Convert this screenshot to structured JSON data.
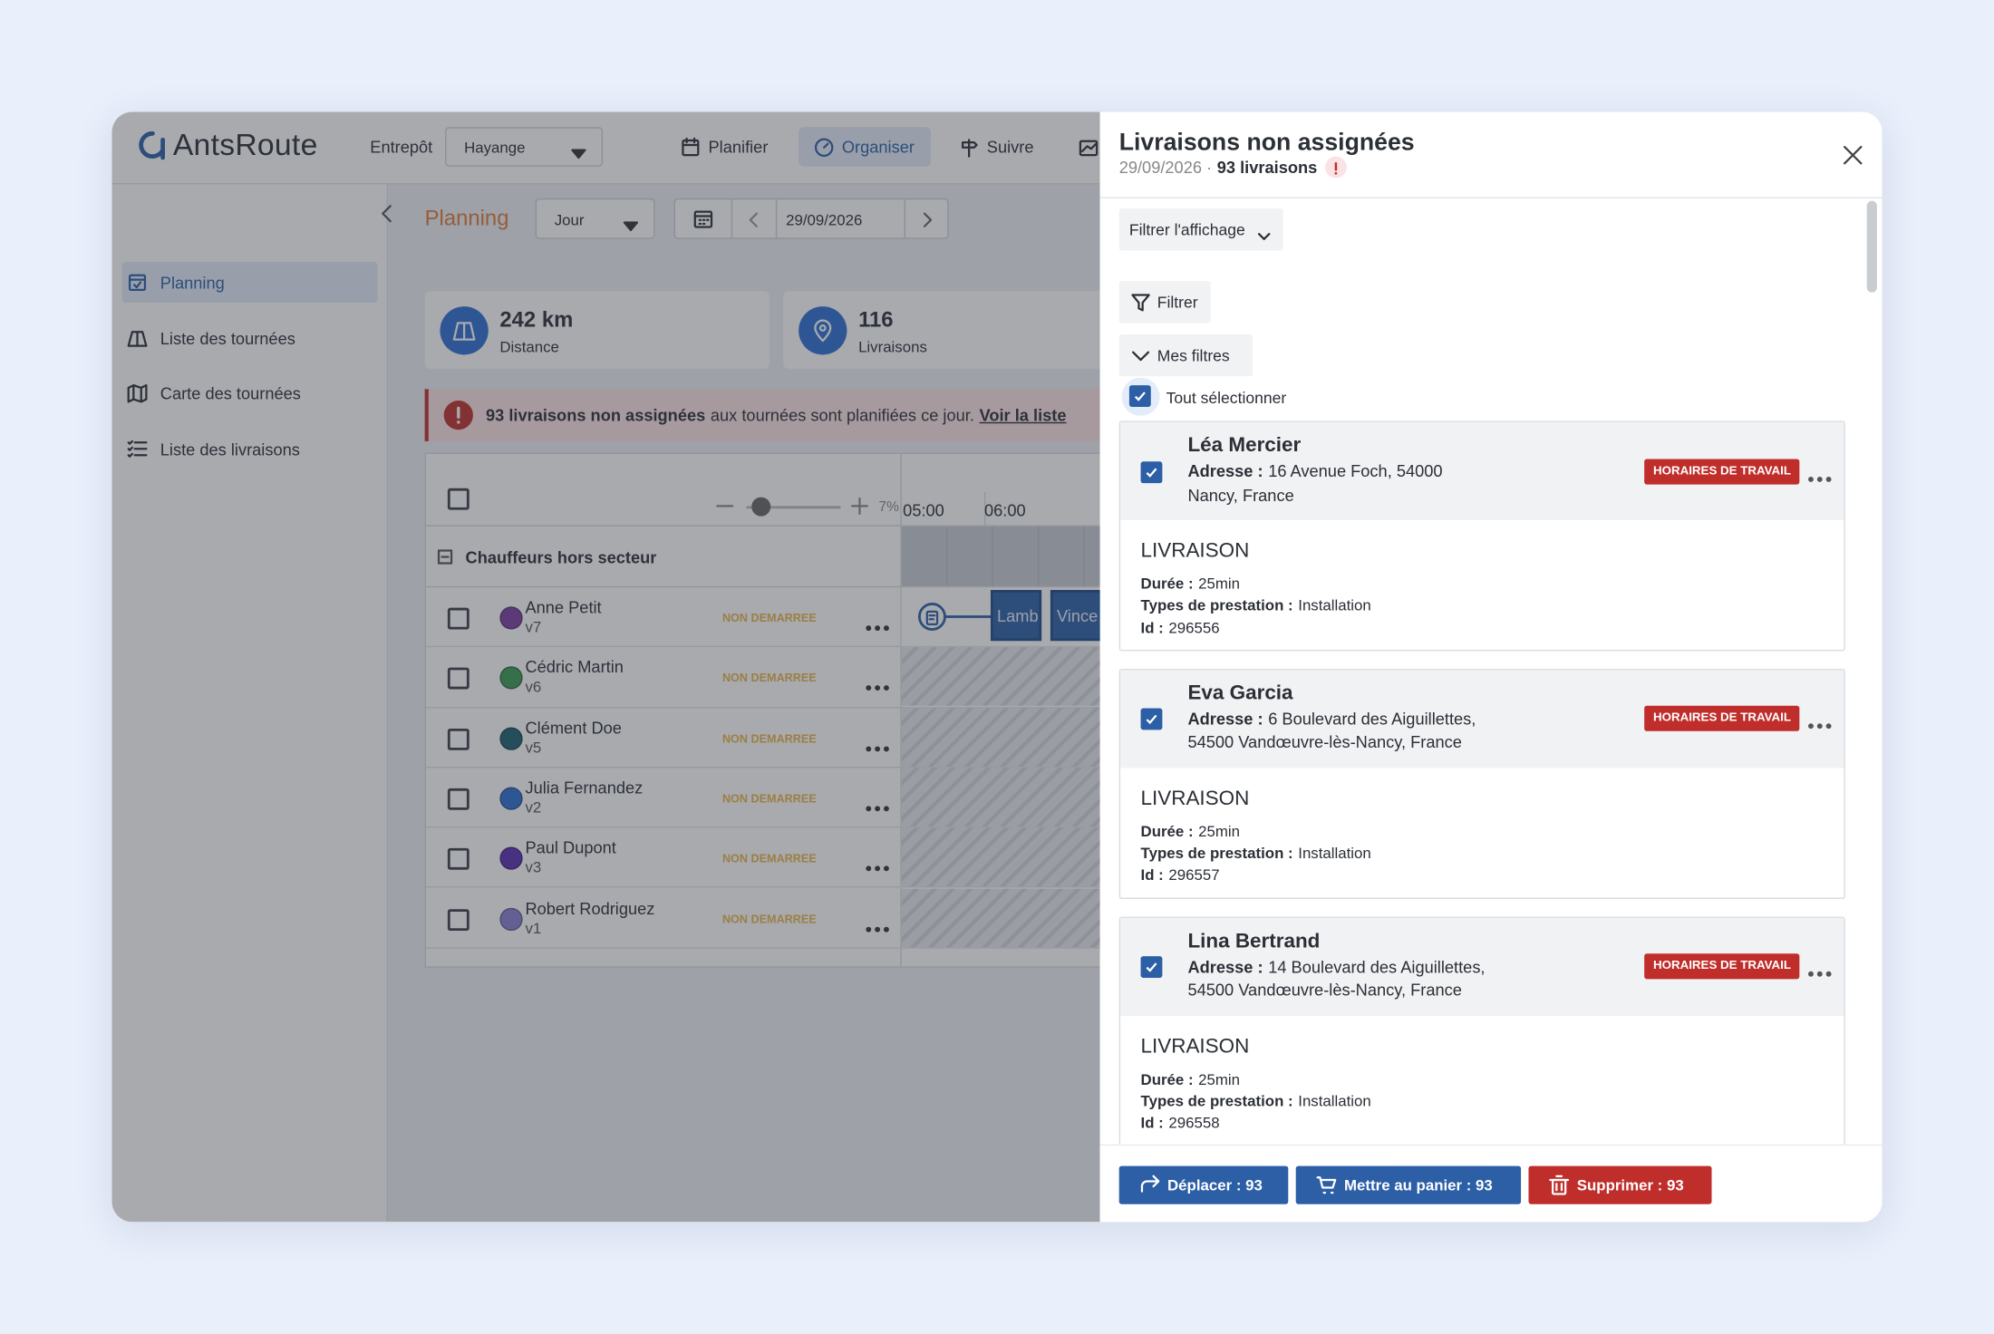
{
  "header": {
    "logo": "AntsRoute",
    "warehouse_label": "Entrepôt",
    "warehouse": "Hayange",
    "nav": [
      "Planifier",
      "Organiser",
      "Suivre"
    ]
  },
  "sidebar": [
    "Planning",
    "Liste des tournées",
    "Carte des tournées",
    "Liste des livraisons"
  ],
  "planning": {
    "title": "Planning",
    "view": "Jour",
    "date": "29/09/2026",
    "stats": [
      {
        "value": "242 km",
        "label": "Distance"
      },
      {
        "value": "116",
        "label": "Livraisons"
      }
    ],
    "alert": {
      "bold": "93 livraisons non assignées",
      "text": "aux tournées sont planifiées ce jour.",
      "link": "Voir la liste"
    },
    "zoom": "7%",
    "hours": [
      "05:00",
      "06:00"
    ],
    "group": "Chauffeurs hors secteur",
    "drivers": [
      {
        "name": "Anne Petit",
        "vehicle": "v7",
        "status": "NON DEMARREE",
        "color": "#7d3fa3"
      },
      {
        "name": "Cédric Martin",
        "vehicle": "v6",
        "status": "NON DEMARREE",
        "color": "#3c9a52"
      },
      {
        "name": "Clément Doe",
        "vehicle": "v5",
        "status": "NON DEMARREE",
        "color": "#1f5f70"
      },
      {
        "name": "Julia Fernandez",
        "vehicle": "v2",
        "status": "NON DEMARREE",
        "color": "#2f6fd2"
      },
      {
        "name": "Paul Dupont",
        "vehicle": "v3",
        "status": "NON DEMARREE",
        "color": "#5a2fb2"
      },
      {
        "name": "Robert Rodriguez",
        "vehicle": "v1",
        "status": "NON DEMARREE",
        "color": "#8b80d2"
      }
    ],
    "route_blocks": [
      "Lamb",
      "Vince"
    ]
  },
  "panel": {
    "title": "Livraisons non assignées",
    "date": "29/09/2026 ·",
    "count": "93 livraisons",
    "filter_view": "Filtrer l'affichage",
    "filter": "Filtrer",
    "my_filters": "Mes filtres",
    "select_all": "Tout sélectionner",
    "cards": [
      {
        "name": "Léa Mercier",
        "address": {
          "label": "Adresse :",
          "value": "16 Avenue Foch, 54000 Nancy, France"
        },
        "badge": "HORAIRES DE TRAVAIL",
        "kind": "LIVRAISON",
        "fields": [
          {
            "label": "Durée :",
            "value": "25min"
          },
          {
            "label": "Types de prestation :",
            "value": "Installation"
          },
          {
            "label": "Id :",
            "value": "296556"
          }
        ]
      },
      {
        "name": "Eva Garcia",
        "address": {
          "label": "Adresse :",
          "value": "6 Boulevard des Aiguillettes, 54500 Vandœuvre-lès-Nancy, France"
        },
        "badge": "HORAIRES DE TRAVAIL",
        "kind": "LIVRAISON",
        "fields": [
          {
            "label": "Durée :",
            "value": "25min"
          },
          {
            "label": "Types de prestation :",
            "value": "Installation"
          },
          {
            "label": "Id :",
            "value": "296557"
          }
        ]
      },
      {
        "name": "Lina Bertrand",
        "address": {
          "label": "Adresse :",
          "value": "14 Boulevard des Aiguillettes, 54500 Vandœuvre-lès-Nancy, France"
        },
        "badge": "HORAIRES DE TRAVAIL",
        "kind": "LIVRAISON",
        "fields": [
          {
            "label": "Durée :",
            "value": "25min"
          },
          {
            "label": "Types de prestation :",
            "value": "Installation"
          },
          {
            "label": "Id :",
            "value": "296558"
          }
        ]
      }
    ],
    "buttons": [
      "Déplacer : 93",
      "Mettre au panier : 93",
      "Supprimer : 93"
    ]
  }
}
